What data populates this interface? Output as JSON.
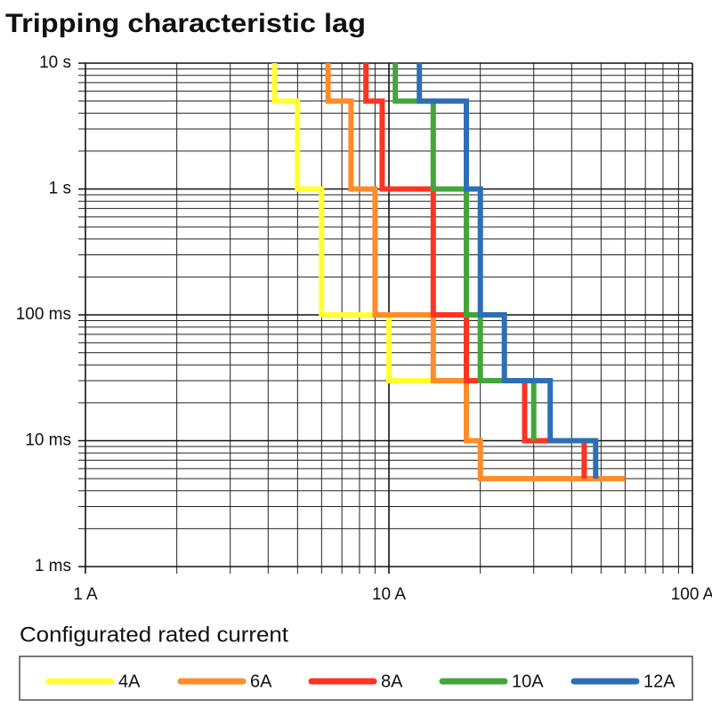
{
  "chart_data": {
    "type": "step",
    "title": "Tripping characteristic lag",
    "xscale": "log",
    "yscale": "log",
    "xlim": [
      1,
      100
    ],
    "ylim": [
      0.001,
      10
    ],
    "xticks": [
      {
        "value": 1,
        "label": "1 A"
      },
      {
        "value": 10,
        "label": "10 A"
      },
      {
        "value": 100,
        "label": "100 A"
      }
    ],
    "yticks": [
      {
        "value": 0.001,
        "label": "1 ms"
      },
      {
        "value": 0.01,
        "label": "10 ms"
      },
      {
        "value": 0.1,
        "label": "100 ms"
      },
      {
        "value": 1,
        "label": "1 s"
      },
      {
        "value": 10,
        "label": "10 s"
      }
    ],
    "grid": true,
    "minor_grid": true,
    "legend_title": "Configurated rated current",
    "series": [
      {
        "name": "4A",
        "color": "#ffff33",
        "x": [
          4.2,
          4.2,
          5,
          5,
          6,
          6,
          10,
          10,
          14
        ],
        "values": [
          10,
          5,
          5,
          1,
          1,
          0.1,
          0.1,
          0.03,
          0.03
        ]
      },
      {
        "name": "6A",
        "color": "#ff8c28",
        "x": [
          6.3,
          6.3,
          7.5,
          7.5,
          9,
          9,
          14,
          14,
          18,
          18,
          20,
          20,
          60
        ],
        "values": [
          10,
          5,
          5,
          1,
          1,
          0.1,
          0.1,
          0.03,
          0.03,
          0.01,
          0.01,
          0.005,
          0.005
        ]
      },
      {
        "name": "8A",
        "color": "#ff3322",
        "x": [
          8.4,
          8.4,
          9.5,
          9.5,
          14,
          14,
          18,
          18,
          28,
          28,
          44,
          44
        ],
        "values": [
          10,
          5,
          5,
          1,
          1,
          0.1,
          0.1,
          0.03,
          0.03,
          0.01,
          0.01,
          0.005
        ]
      },
      {
        "name": "10A",
        "color": "#44a53a",
        "x": [
          10.5,
          10.5,
          14,
          14,
          18,
          18,
          20,
          20,
          30,
          30
        ],
        "values": [
          10,
          5,
          5,
          1,
          1,
          0.1,
          0.1,
          0.03,
          0.03,
          0.01
        ]
      },
      {
        "name": "12A",
        "color": "#2e6eb5",
        "x": [
          12.6,
          12.6,
          18,
          18,
          20,
          20,
          24,
          24,
          34,
          34,
          48,
          48
        ],
        "values": [
          10,
          5,
          5,
          1,
          1,
          0.1,
          0.1,
          0.03,
          0.03,
          0.01,
          0.01,
          0.005
        ]
      }
    ]
  }
}
